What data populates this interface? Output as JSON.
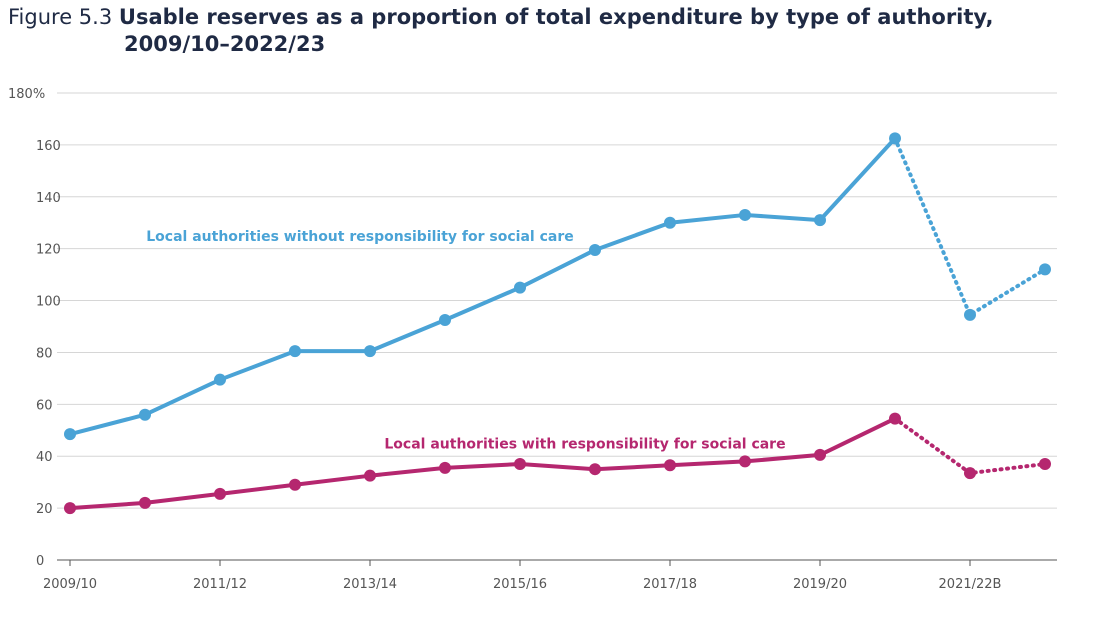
{
  "figure": {
    "number": "Figure 5.3",
    "title_line1": "Usable reserves as a proportion of total expenditure by type of authority,",
    "title_line2": "2009/10–2022/23"
  },
  "chart_data": {
    "type": "line",
    "title": "Usable reserves as a proportion of total expenditure by type of authority, 2009/10–2022/23",
    "x_count": 14,
    "x_tick_labels": [
      {
        "index": 0,
        "label": "2009/10"
      },
      {
        "index": 2,
        "label": "2011/12"
      },
      {
        "index": 4,
        "label": "2013/14"
      },
      {
        "index": 6,
        "label": "2015/16"
      },
      {
        "index": 8,
        "label": "2017/18"
      },
      {
        "index": 10,
        "label": "2019/20"
      },
      {
        "index": 12,
        "label": "2021/22B"
      }
    ],
    "ylim": [
      0,
      180
    ],
    "y_ticks": [
      {
        "value": 0,
        "label": "0"
      },
      {
        "value": 20,
        "label": "20"
      },
      {
        "value": 40,
        "label": "40"
      },
      {
        "value": 60,
        "label": "60"
      },
      {
        "value": 80,
        "label": "80"
      },
      {
        "value": 100,
        "label": "100"
      },
      {
        "value": 120,
        "label": "120"
      },
      {
        "value": 140,
        "label": "140"
      },
      {
        "value": 160,
        "label": "160"
      },
      {
        "value": 180,
        "label": "180%"
      }
    ],
    "grid": true,
    "dotted_from_index": 11,
    "series": [
      {
        "name": "Local authorities without responsibility for social care",
        "color": "#4aa3d6",
        "label_anchor_index": 4,
        "label_anchor_value": 123,
        "values": [
          48.5,
          56,
          69.5,
          80.5,
          80.5,
          92.5,
          105,
          119.5,
          130,
          133,
          131,
          162.5,
          94.5,
          112
        ]
      },
      {
        "name": "Local authorities with responsibility for social care",
        "color": "#b5276f",
        "label_anchor_index": 7,
        "label_anchor_value": 43,
        "values": [
          20,
          22,
          25.5,
          29,
          32.5,
          35.5,
          37,
          35,
          36.5,
          38,
          40.5,
          54.5,
          33.5,
          37
        ]
      }
    ]
  }
}
